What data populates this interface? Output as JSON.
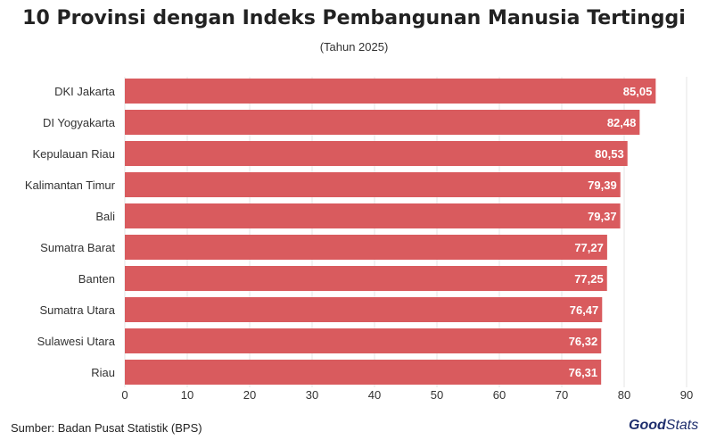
{
  "title": "10 Provinsi dengan Indeks Pembangunan Manusia Tertinggi",
  "subtitle": "(Tahun 2025)",
  "source": "Sumber: Badan Pusat Statistik (BPS)",
  "brand": {
    "part1": "Good",
    "part2": "Stats"
  },
  "colors": {
    "bar": "#d95b5e",
    "grid": "#e6e6e6",
    "label_text": "#ffffff",
    "axis_text": "#333333"
  },
  "chart_data": {
    "type": "bar",
    "orientation": "horizontal",
    "categories": [
      "DKI Jakarta",
      "DI Yogyakarta",
      "Kepulauan Riau",
      "Kalimantan Timur",
      "Bali",
      "Sumatra Barat",
      "Banten",
      "Sumatra Utara",
      "Sulawesi Utara",
      "Riau"
    ],
    "values": [
      85.05,
      82.48,
      80.53,
      79.39,
      79.37,
      77.27,
      77.25,
      76.47,
      76.32,
      76.31
    ],
    "value_labels": [
      "85,05",
      "82,48",
      "80,53",
      "79,39",
      "79,37",
      "77,27",
      "77,25",
      "76,47",
      "76,32",
      "76,31"
    ],
    "xlim": [
      0,
      90
    ],
    "xticks": [
      "0",
      "10",
      "20",
      "30",
      "40",
      "50",
      "60",
      "70",
      "80",
      "90"
    ],
    "grid": true,
    "legend": "none"
  }
}
